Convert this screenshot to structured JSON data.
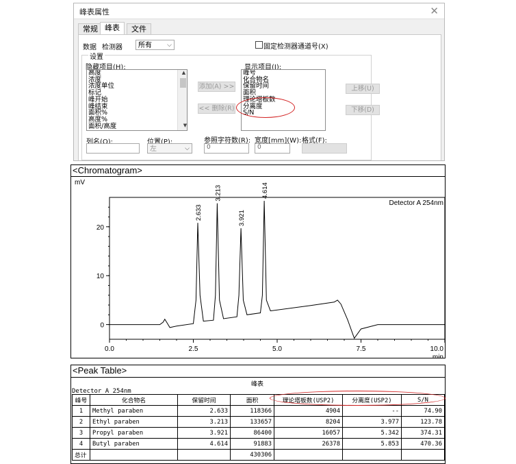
{
  "dialog": {
    "title": "峰表属性",
    "tabs": [
      "常规",
      "峰表",
      "文件"
    ],
    "data_label": "数据",
    "detector_label": "检测器",
    "detector_value": "所有",
    "fix_channel_label": "固定检测器通道号(X)",
    "settings_label": "设置",
    "hidden_label": "隐藏项目(H):",
    "hidden_items": [
      "高度",
      "浓度",
      "浓度单位",
      "标记",
      "峰开始",
      "峰结束",
      "面积%",
      "高度%",
      "面积/高度"
    ],
    "shown_label": "显示项目(I):",
    "shown_items": [
      "峰号",
      "化合物名",
      "保留时间",
      "面积",
      "理论塔板数",
      "分离度",
      "S/N"
    ],
    "add_button": "添加(A) >>",
    "remove_button": "<< 删除(R)",
    "up_button": "上移(U)",
    "down_button": "下移(D)",
    "column_name_label": "列名(O):",
    "position_label": "位置(P):",
    "position_value": "左",
    "ref_chars_label": "参照字符数(R):",
    "ref_chars_value": "0",
    "width_label": "宽度[mm](W):",
    "width_value": "0",
    "format_label": "格式(F):"
  },
  "chromatogram": {
    "section_title": "<Chromatogram>",
    "y_unit": "mV",
    "x_unit": "min",
    "detector_label": "Detector A 254nm"
  },
  "chart_data": {
    "type": "line",
    "title": "",
    "xlabel": "min",
    "ylabel": "mV",
    "xlim": [
      0,
      10
    ],
    "ylim": [
      -3,
      26
    ],
    "x_ticks": [
      "0.0",
      "2.5",
      "5.0",
      "7.5",
      "10.0"
    ],
    "y_ticks": [
      "0",
      "10",
      "20"
    ],
    "peak_labels": [
      "2.633",
      "3.213",
      "3.921",
      "4.614"
    ],
    "series": [
      {
        "x": [
          0.0,
          1.5,
          1.6,
          1.65,
          1.72,
          1.8,
          2.0,
          2.5,
          2.58,
          2.633,
          2.7,
          2.8,
          3.1,
          3.16,
          3.213,
          3.28,
          3.4,
          3.8,
          3.86,
          3.921,
          3.99,
          4.1,
          4.5,
          4.56,
          4.614,
          4.68,
          4.8,
          6.0,
          6.7,
          6.8,
          6.9,
          7.1,
          7.3,
          7.5,
          8.0,
          10.0
        ],
        "y": [
          0.0,
          0.0,
          0.5,
          1.1,
          0.3,
          -0.6,
          -0.3,
          0.2,
          5.0,
          20.8,
          6.0,
          0.7,
          0.9,
          6.0,
          24.8,
          5.0,
          1.2,
          1.6,
          6.0,
          19.7,
          5.0,
          2.0,
          2.4,
          6.0,
          25.3,
          5.0,
          2.8,
          3.9,
          4.6,
          5.0,
          4.2,
          1.0,
          -2.8,
          -0.9,
          0.0,
          0.0
        ]
      }
    ]
  },
  "peak_table": {
    "section_title": "<Peak Table>",
    "caption": "峰表",
    "detector_line": "Detector A 254nm",
    "headers": [
      "峰号",
      "化合物名",
      "保留时间",
      "面积",
      "理论塔板数(USP2)",
      "分离度(USP2)",
      "S/N"
    ],
    "rows": [
      [
        "1",
        "Methyl paraben",
        "2.633",
        "118366",
        "4904",
        "--",
        "74.90"
      ],
      [
        "2",
        "Ethyl paraben",
        "3.213",
        "133657",
        "8204",
        "3.977",
        "123.78"
      ],
      [
        "3",
        "Propyl paraben",
        "3.921",
        "86400",
        "16057",
        "5.342",
        "374.31"
      ],
      [
        "4",
        "Butyl paraben",
        "4.614",
        "91883",
        "26378",
        "5.853",
        "470.36"
      ]
    ],
    "total_label": "总计",
    "total_area": "430306"
  },
  "colors": {
    "annotation": "#d22020",
    "dialog_bg": "#f0f0f0"
  }
}
